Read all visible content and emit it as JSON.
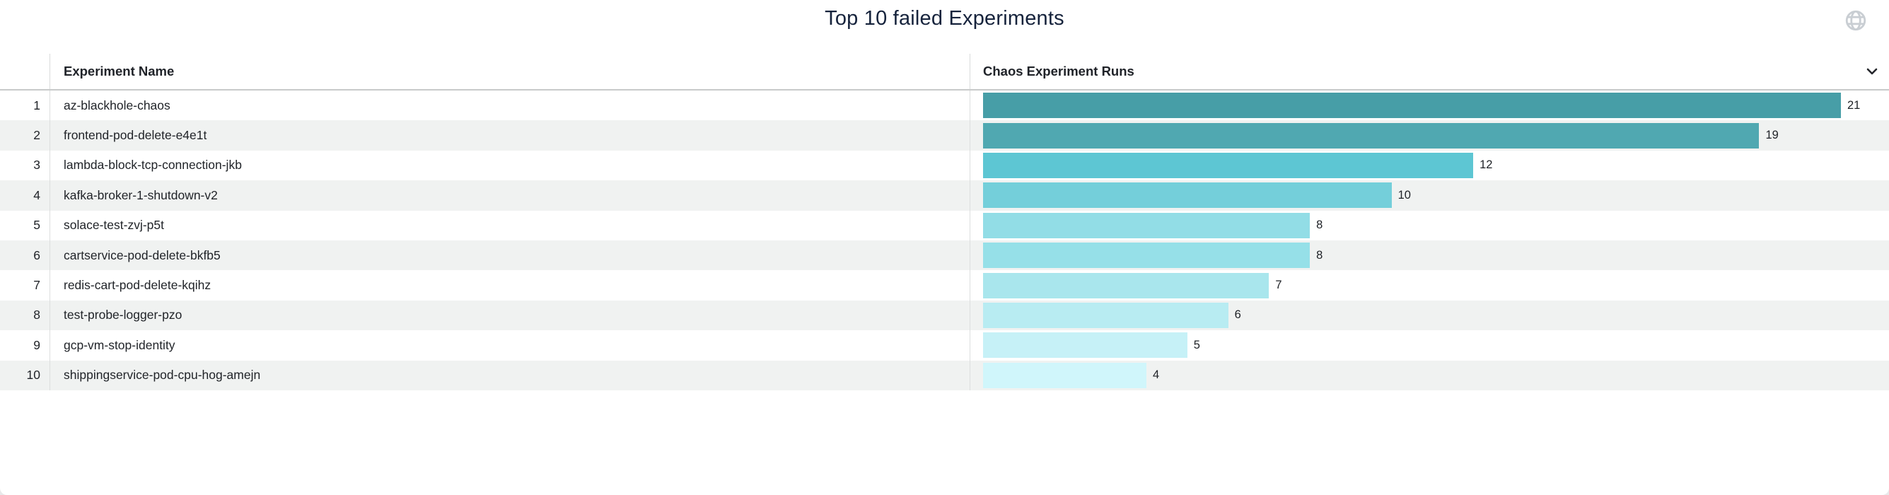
{
  "panel": {
    "title": "Top 10 failed Experiments",
    "globe_icon": "globe-icon"
  },
  "table": {
    "columns": [
      {
        "label": "Experiment Name"
      },
      {
        "label": "Chaos Experiment Runs",
        "sort_icon": "chevron-down-icon"
      }
    ],
    "rows": [
      {
        "rank": "1",
        "name": "az-blackhole-chaos",
        "value": 21,
        "bar_color": "#479ea7"
      },
      {
        "rank": "2",
        "name": "frontend-pod-delete-e4e1t",
        "value": 19,
        "bar_color": "#50a8b1"
      },
      {
        "rank": "3",
        "name": "lambda-block-tcp-connection-jkb",
        "value": 12,
        "bar_color": "#5dc6d3"
      },
      {
        "rank": "4",
        "name": "kafka-broker-1-shutdown-v2",
        "value": 10,
        "bar_color": "#74cfda"
      },
      {
        "rank": "5",
        "name": "solace-test-zvj-p5t",
        "value": 8,
        "bar_color": "#92dde6"
      },
      {
        "rank": "6",
        "name": "cartservice-pod-delete-bkfb5",
        "value": 8,
        "bar_color": "#96e0e8"
      },
      {
        "rank": "7",
        "name": "redis-cart-pod-delete-kqihz",
        "value": 7,
        "bar_color": "#a9e6ed"
      },
      {
        "rank": "8",
        "name": "test-probe-logger-pzo",
        "value": 6,
        "bar_color": "#b8ecf2"
      },
      {
        "rank": "9",
        "name": "gcp-vm-stop-identity",
        "value": 5,
        "bar_color": "#c6f1f7"
      },
      {
        "rank": "10",
        "name": "shippingservice-pod-cpu-hog-amejn",
        "value": 4,
        "bar_color": "#d0f6fb"
      }
    ]
  },
  "chart_data": {
    "type": "bar",
    "orientation": "horizontal",
    "title": "Top 10 failed Experiments",
    "categories": [
      "az-blackhole-chaos",
      "frontend-pod-delete-e4e1t",
      "lambda-block-tcp-connection-jkb",
      "kafka-broker-1-shutdown-v2",
      "solace-test-zvj-p5t",
      "cartservice-pod-delete-bkfb5",
      "redis-cart-pod-delete-kqihz",
      "test-probe-logger-pzo",
      "gcp-vm-stop-identity",
      "shippingservice-pod-cpu-hog-amejn"
    ],
    "values": [
      21,
      19,
      12,
      10,
      8,
      8,
      7,
      6,
      5,
      4
    ],
    "value_axis_label": "Chaos Experiment Runs",
    "category_axis_label": "Experiment Name",
    "xlim": [
      0,
      21
    ],
    "grid": false,
    "legend": false,
    "value_labels_shown": true,
    "bar_colors": [
      "#479ea7",
      "#50a8b1",
      "#5dc6d3",
      "#74cfda",
      "#92dde6",
      "#96e0e8",
      "#a9e6ed",
      "#b8ecf2",
      "#c6f1f7",
      "#d0f6fb"
    ]
  },
  "colors": {
    "page_background": "#e8e9ea",
    "panel_background": "#ffffff",
    "row_stripe": "#f0f2f1",
    "header_border": "#c8caca",
    "column_divider": "#dcdede",
    "title_text": "#16233c",
    "body_text": "#212429",
    "globe_icon": "#c9ced3"
  }
}
